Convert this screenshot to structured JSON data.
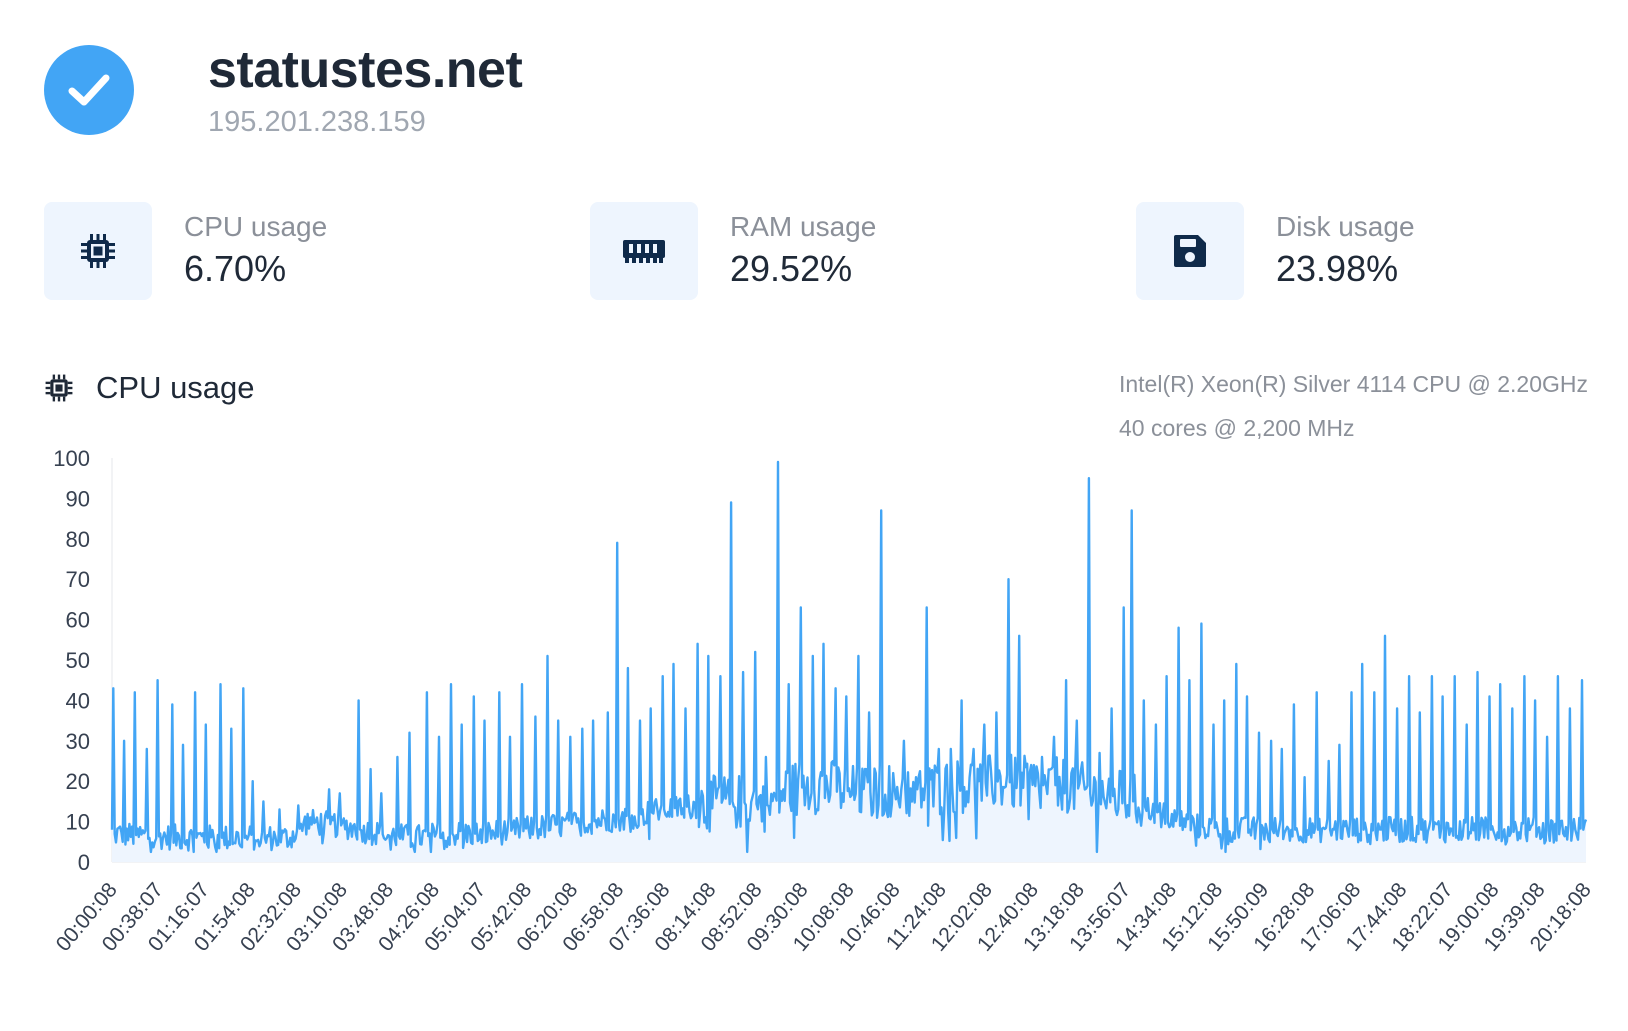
{
  "header": {
    "site_name": "statustes.net",
    "ip": "195.201.238.159",
    "status_icon": "check-icon",
    "status_color": "#42a5f5"
  },
  "stats": [
    {
      "label": "CPU usage",
      "value": "6.70%",
      "icon": "cpu-chip-icon"
    },
    {
      "label": "RAM usage",
      "value": "29.52%",
      "icon": "memory-icon"
    },
    {
      "label": "Disk usage",
      "value": "23.98%",
      "icon": "floppy-disk-icon"
    }
  ],
  "chart_section": {
    "title": "CPU usage",
    "icon": "cpu-chip-icon",
    "cpu_model": "Intel(R) Xeon(R) Silver 4114 CPU @ 2.20GHz",
    "cpu_cores": "40 cores @ 2,200 MHz"
  },
  "colors": {
    "accent": "#42a5f5",
    "icon_dark": "#0f2a4a",
    "fill": "#eef5fe"
  },
  "chart_data": {
    "type": "line",
    "title": "",
    "xlabel": "",
    "ylabel": "",
    "ylim": [
      0,
      100
    ],
    "y_ticks": [
      0,
      10,
      20,
      30,
      40,
      50,
      60,
      70,
      80,
      90,
      100
    ],
    "x_ticks": [
      "00:00:08",
      "00:38:07",
      "01:16:07",
      "01:54:08",
      "02:32:08",
      "03:10:08",
      "03:48:08",
      "04:26:08",
      "05:04:07",
      "05:42:08",
      "06:20:08",
      "06:58:08",
      "07:36:08",
      "08:14:08",
      "08:52:08",
      "09:30:08",
      "10:08:08",
      "10:46:08",
      "11:24:08",
      "12:02:08",
      "12:40:08",
      "13:18:08",
      "13:56:07",
      "14:34:08",
      "15:12:08",
      "15:50:09",
      "16:28:08",
      "17:06:08",
      "17:44:08",
      "18:22:07",
      "19:00:08",
      "19:39:08",
      "20:18:08"
    ],
    "grid": false,
    "baseline": [
      [
        0,
        7
      ],
      [
        4,
        6
      ],
      [
        8,
        6
      ],
      [
        10,
        6
      ],
      [
        11,
        10
      ],
      [
        13,
        9
      ],
      [
        15,
        7
      ],
      [
        17,
        6
      ],
      [
        19,
        7
      ],
      [
        21,
        7
      ],
      [
        23,
        8
      ],
      [
        25,
        9
      ],
      [
        27,
        10
      ],
      [
        29,
        11
      ],
      [
        31,
        13
      ],
      [
        33,
        14
      ],
      [
        35,
        15
      ],
      [
        37,
        14
      ],
      [
        38,
        18
      ],
      [
        40,
        19
      ],
      [
        42,
        17
      ],
      [
        44,
        18
      ],
      [
        46,
        18
      ],
      [
        48,
        19
      ],
      [
        50,
        20
      ],
      [
        52,
        19
      ],
      [
        54,
        19
      ],
      [
        55,
        17
      ],
      [
        57,
        16
      ],
      [
        59,
        12
      ],
      [
        61,
        9
      ],
      [
        63,
        8
      ],
      [
        65,
        8
      ],
      [
        67,
        8
      ],
      [
        69,
        8
      ],
      [
        71,
        8
      ],
      [
        73,
        8
      ],
      [
        75,
        8
      ],
      [
        77,
        8
      ],
      [
        79,
        8
      ],
      [
        81,
        8
      ],
      [
        83,
        8
      ]
    ],
    "spikes": [
      [
        0.03,
        43
      ],
      [
        0.25,
        30
      ],
      [
        0.5,
        42
      ],
      [
        0.75,
        28
      ],
      [
        1.0,
        45
      ],
      [
        1.3,
        39
      ],
      [
        1.55,
        29
      ],
      [
        1.8,
        42
      ],
      [
        2.05,
        34
      ],
      [
        2.35,
        44
      ],
      [
        2.6,
        33
      ],
      [
        2.85,
        43
      ],
      [
        3.05,
        20
      ],
      [
        3.3,
        15
      ],
      [
        3.65,
        13
      ],
      [
        4.05,
        14
      ],
      [
        4.7,
        18
      ],
      [
        4.95,
        17
      ],
      [
        5.35,
        40
      ],
      [
        5.6,
        23
      ],
      [
        5.85,
        17
      ],
      [
        6.2,
        26
      ],
      [
        6.45,
        32
      ],
      [
        6.85,
        42
      ],
      [
        7.1,
        31
      ],
      [
        7.35,
        44
      ],
      [
        7.6,
        34
      ],
      [
        7.85,
        41
      ],
      [
        8.1,
        35
      ],
      [
        8.4,
        42
      ],
      [
        8.65,
        31
      ],
      [
        8.9,
        44
      ],
      [
        9.2,
        36
      ],
      [
        9.45,
        51
      ],
      [
        9.7,
        35
      ],
      [
        9.95,
        31
      ],
      [
        10.2,
        33
      ],
      [
        10.45,
        35
      ],
      [
        10.75,
        37
      ],
      [
        10.98,
        79
      ],
      [
        11.2,
        48
      ],
      [
        11.45,
        35
      ],
      [
        11.7,
        38
      ],
      [
        11.95,
        46
      ],
      [
        12.2,
        49
      ],
      [
        12.45,
        38
      ],
      [
        12.7,
        54
      ],
      [
        12.95,
        51
      ],
      [
        13.2,
        46
      ],
      [
        13.45,
        89
      ],
      [
        13.7,
        47
      ],
      [
        13.95,
        52
      ],
      [
        14.2,
        26
      ],
      [
        14.45,
        99
      ],
      [
        14.7,
        44
      ],
      [
        14.95,
        63
      ],
      [
        15.2,
        51
      ],
      [
        15.45,
        54
      ],
      [
        15.7,
        43
      ],
      [
        15.95,
        41
      ],
      [
        16.2,
        51
      ],
      [
        16.45,
        37
      ],
      [
        16.7,
        87
      ],
      [
        16.95,
        22
      ],
      [
        17.2,
        30
      ],
      [
        17.45,
        21
      ],
      [
        17.7,
        63
      ],
      [
        17.95,
        28
      ],
      [
        18.2,
        28
      ],
      [
        18.45,
        40
      ],
      [
        18.7,
        28
      ],
      [
        18.95,
        34
      ],
      [
        19.2,
        37
      ],
      [
        19.45,
        70
      ],
      [
        19.7,
        56
      ],
      [
        19.95,
        24
      ],
      [
        20.2,
        26
      ],
      [
        20.45,
        31
      ],
      [
        20.7,
        45
      ],
      [
        20.95,
        35
      ],
      [
        21.2,
        95
      ],
      [
        21.45,
        27
      ],
      [
        21.7,
        38
      ],
      [
        21.95,
        63
      ],
      [
        22.15,
        87
      ],
      [
        22.4,
        40
      ],
      [
        22.65,
        34
      ],
      [
        22.9,
        46
      ],
      [
        23.15,
        58
      ],
      [
        23.4,
        45
      ],
      [
        23.65,
        59
      ],
      [
        23.9,
        34
      ],
      [
        24.15,
        40
      ],
      [
        24.4,
        49
      ],
      [
        24.65,
        41
      ],
      [
        24.9,
        32
      ],
      [
        25.15,
        30
      ],
      [
        25.4,
        28
      ],
      [
        25.65,
        39
      ],
      [
        25.9,
        21
      ],
      [
        26.15,
        42
      ],
      [
        26.4,
        25
      ],
      [
        26.65,
        29
      ],
      [
        26.9,
        42
      ],
      [
        27.15,
        49
      ],
      [
        27.4,
        42
      ],
      [
        27.65,
        56
      ],
      [
        27.9,
        38
      ],
      [
        28.15,
        46
      ],
      [
        28.4,
        37
      ],
      [
        28.65,
        46
      ],
      [
        28.9,
        41
      ],
      [
        29.15,
        46
      ],
      [
        29.4,
        34
      ],
      [
        29.65,
        47
      ],
      [
        29.9,
        41
      ],
      [
        30.15,
        44
      ],
      [
        30.4,
        38
      ],
      [
        30.65,
        46
      ],
      [
        30.9,
        40
      ],
      [
        31.15,
        31
      ],
      [
        31.4,
        46
      ],
      [
        31.65,
        38
      ],
      [
        31.9,
        45
      ]
    ],
    "x_range": [
      0,
      32
    ]
  }
}
